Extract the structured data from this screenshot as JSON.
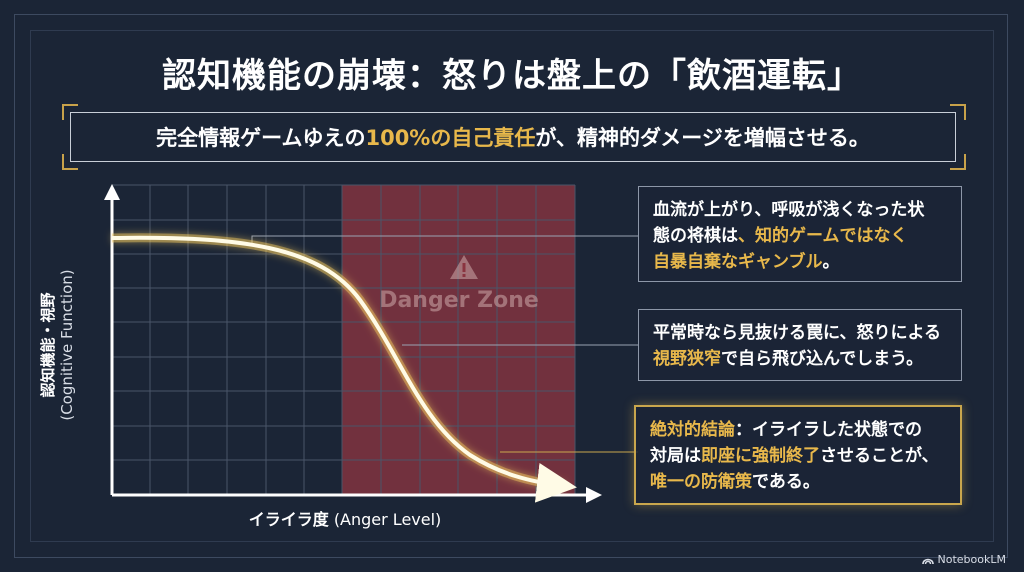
{
  "title": "認知機能の崩壊：怒りは盤上の「飲酒運転」",
  "subtitle": {
    "before": "完全情報ゲームゆえの",
    "highlight": "100%の自己責任",
    "after": "が、精神的ダメージを増幅させる。"
  },
  "chart": {
    "y_label_jp": "認知機能・視野",
    "y_label_en": "(Cognitive Function)",
    "x_label_jp": "イライラ度",
    "x_label_en": "(Anger Level)",
    "danger_zone_label": "Danger Zone",
    "colors": {
      "curve": "#fffbe6",
      "glow": "#f0c860",
      "danger": "#8a3440",
      "grid": "#4a5568"
    }
  },
  "callouts": [
    {
      "line1": "血流が上がり、呼吸が浅くなった状",
      "line2_plain": "態の将棋は",
      "line2_highlight": "、知的ゲームではなく",
      "line3_highlight": "自暴自棄なギャンブル",
      "line3_plain": "。"
    },
    {
      "line1": "平常時なら見抜ける罠に、怒りによる",
      "line2_highlight": "視野狭窄",
      "line2_plain": "で自ら飛び込んでしまう。"
    },
    {
      "line1_highlight": "絶対的結論",
      "line1_plain": "：イライラした状態での",
      "line2_plain_a": "対局は",
      "line2_highlight": "即座に強制終了",
      "line2_plain_b": "させることが、",
      "line3_highlight": "唯一の防衛策",
      "line3_plain": "である。"
    }
  ],
  "brand": "NotebookLM"
}
